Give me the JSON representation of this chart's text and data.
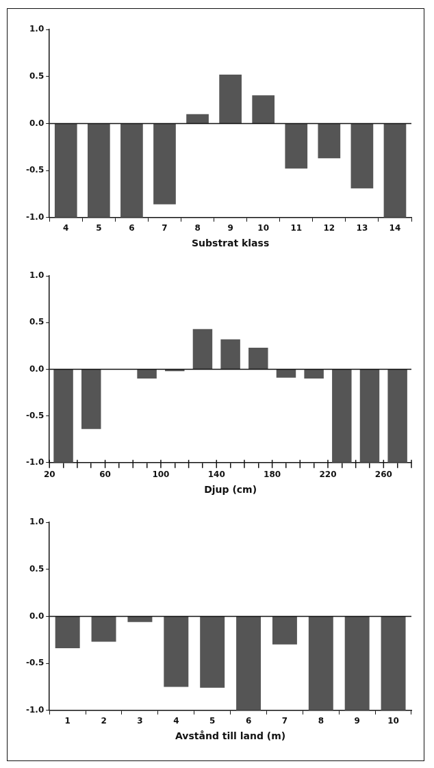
{
  "chart_data": [
    {
      "type": "bar",
      "xlabel": "Substrat klass",
      "categories": [
        "4",
        "5",
        "6",
        "7",
        "8",
        "9",
        "10",
        "11",
        "12",
        "13",
        "14"
      ],
      "series": [
        {
          "color": "#555555",
          "values": [
            -1.0,
            -1.0,
            -1.0,
            -0.86,
            0.1,
            0.52,
            0.3,
            -0.48,
            -0.37,
            -0.69,
            -1.0
          ]
        }
      ],
      "ylim": [
        -1,
        1
      ],
      "yticks": [
        {
          "value": -1,
          "label": "-1.0"
        },
        {
          "value": -0.5,
          "label": "-0.5"
        },
        {
          "value": 0,
          "label": "0.0"
        },
        {
          "value": 0.5,
          "label": "0.5"
        },
        {
          "value": 1,
          "label": "1.0"
        }
      ],
      "ref_lines": [
        {
          "axis": "y",
          "value": 0
        }
      ],
      "grid": false,
      "legend": false
    },
    {
      "type": "histogram",
      "xlabel": "Djup (cm)",
      "bins": [
        20,
        40,
        60,
        80,
        100,
        120,
        140,
        160,
        180,
        200,
        220,
        240,
        260,
        280
      ],
      "color": "#555555",
      "values": [
        -1.0,
        -0.64,
        0,
        -0.1,
        -0.02,
        0.43,
        0.32,
        0.23,
        -0.09,
        -0.1,
        -1.0,
        -1.0,
        -1.0
      ],
      "xlim": [
        20,
        280
      ],
      "xticks": [
        20,
        {
          "value": 40,
          "label": null
        },
        60,
        {
          "value": 80,
          "label": null
        },
        100,
        {
          "value": 120,
          "label": null
        },
        140,
        {
          "value": 160,
          "label": null
        },
        180,
        {
          "value": 200,
          "label": null
        },
        220,
        {
          "value": 240,
          "label": null
        },
        260,
        {
          "value": 280,
          "label": null
        }
      ],
      "ylim": [
        -1,
        1
      ],
      "yticks": [
        {
          "value": -1,
          "label": "-1.0"
        },
        {
          "value": -0.5,
          "label": "-0.5"
        },
        {
          "value": 0,
          "label": "0.0"
        },
        {
          "value": 0.5,
          "label": "0.5"
        },
        {
          "value": 1,
          "label": "1.0"
        }
      ],
      "ref_lines": [
        {
          "axis": "y",
          "value": 0
        }
      ],
      "grid": false,
      "legend": false
    },
    {
      "type": "bar",
      "xlabel": "Avstånd till land (m)",
      "categories": [
        "1",
        "2",
        "3",
        "4",
        "5",
        "6",
        "7",
        "8",
        "9",
        "10"
      ],
      "series": [
        {
          "color": "#555555",
          "values": [
            -0.34,
            -0.27,
            -0.06,
            -0.75,
            -0.76,
            -1.0,
            -0.3,
            -1.0,
            -1.0,
            -1.0
          ]
        }
      ],
      "ylim": [
        -1,
        1
      ],
      "yticks": [
        {
          "value": -1,
          "label": "-1.0"
        },
        {
          "value": -0.5,
          "label": "-0.5"
        },
        {
          "value": 0,
          "label": "0.0"
        },
        {
          "value": 0.5,
          "label": "0.5"
        },
        {
          "value": 1,
          "label": "1.0"
        }
      ],
      "ref_lines": [
        {
          "axis": "y",
          "value": 0
        }
      ],
      "grid": false,
      "legend": false
    }
  ]
}
